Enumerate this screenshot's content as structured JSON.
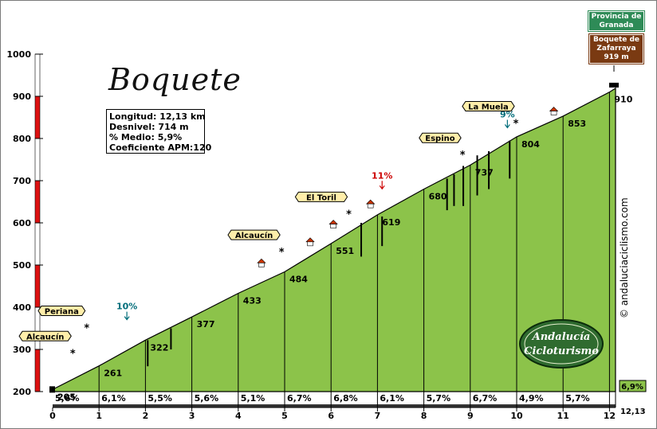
{
  "header": {
    "title": "Boquete",
    "stats": {
      "length": "Longitud: 12,13 km",
      "gain": "Desnivel: 714 m",
      "avg": "% Medio: 5,9%",
      "coef": "Coeficiente APM:120"
    },
    "province_sign": [
      "Provincia de",
      "Granada"
    ],
    "pass_sign": [
      "Boquete de",
      "Zafarraya",
      "919 m"
    ],
    "watermark": "© andaluciaciclismo.com",
    "logo_text": [
      "Andalucía",
      "Cicloturismo"
    ]
  },
  "colors": {
    "profile_fill": "#8cc34a",
    "profile_stroke": "#000000",
    "axis_red": "#dd1111",
    "sign_yellow": "#ffeeaa",
    "label_teal": "#006d7a",
    "label_red": "#cc0000",
    "province_green": "#2e8b57",
    "pass_brown": "#7a3a12"
  },
  "chart_data": {
    "type": "area",
    "xlim": [
      0,
      12.13
    ],
    "ylim": [
      200,
      1000
    ],
    "x_ticks": [
      0,
      1,
      2,
      3,
      4,
      5,
      6,
      7,
      8,
      9,
      10,
      11,
      12
    ],
    "x_end_label": "12,13",
    "y_ticks": [
      200,
      300,
      400,
      500,
      600,
      700,
      800,
      900,
      1000
    ],
    "profile": [
      {
        "x": 0,
        "y": 205
      },
      {
        "x": 1,
        "y": 261
      },
      {
        "x": 2,
        "y": 322
      },
      {
        "x": 3,
        "y": 377
      },
      {
        "x": 4,
        "y": 433
      },
      {
        "x": 5,
        "y": 484
      },
      {
        "x": 6,
        "y": 551
      },
      {
        "x": 7,
        "y": 619
      },
      {
        "x": 8,
        "y": 680
      },
      {
        "x": 9,
        "y": 737
      },
      {
        "x": 10,
        "y": 804
      },
      {
        "x": 11,
        "y": 853
      },
      {
        "x": 12,
        "y": 910
      },
      {
        "x": 12.13,
        "y": 919
      }
    ],
    "point_labels": [
      {
        "x": 0,
        "y": 205,
        "label": "205"
      },
      {
        "x": 1,
        "y": 261,
        "label": "261"
      },
      {
        "x": 2,
        "y": 322,
        "label": "322"
      },
      {
        "x": 3,
        "y": 377,
        "label": "377"
      },
      {
        "x": 4,
        "y": 433,
        "label": "433"
      },
      {
        "x": 5,
        "y": 484,
        "label": "484"
      },
      {
        "x": 6,
        "y": 551,
        "label": "551"
      },
      {
        "x": 7,
        "y": 619,
        "label": "619"
      },
      {
        "x": 8,
        "y": 680,
        "label": "680"
      },
      {
        "x": 9,
        "y": 737,
        "label": "737"
      },
      {
        "x": 10,
        "y": 804,
        "label": "804"
      },
      {
        "x": 11,
        "y": 853,
        "label": "853"
      },
      {
        "x": 12,
        "y": 910,
        "label": "910"
      }
    ],
    "segment_grades": [
      "5,6%",
      "6,1%",
      "5,5%",
      "5,6%",
      "5,1%",
      "6,7%",
      "6,8%",
      "6,1%",
      "5,7%",
      "6,7%",
      "4,9%",
      "5,7%"
    ],
    "last_grade": "6,9%",
    "places": [
      {
        "label": "Alcaucín",
        "x": 0.4,
        "y": 290
      },
      {
        "label": "Periana",
        "x": 0.7,
        "y": 350
      },
      {
        "label": "Alcaucín",
        "x": 4.9,
        "y": 530
      },
      {
        "label": "El Toril",
        "x": 6.35,
        "y": 620
      },
      {
        "label": "Espino",
        "x": 8.8,
        "y": 760
      },
      {
        "label": "La Muela",
        "x": 9.95,
        "y": 835
      }
    ],
    "annotations": [
      {
        "label": "10%",
        "x": 1.6,
        "y": 380,
        "color": "teal"
      },
      {
        "label": "11%",
        "x": 7.1,
        "y": 690,
        "color": "red"
      },
      {
        "label": "9%",
        "x": 9.8,
        "y": 835,
        "color": "teal"
      }
    ]
  }
}
